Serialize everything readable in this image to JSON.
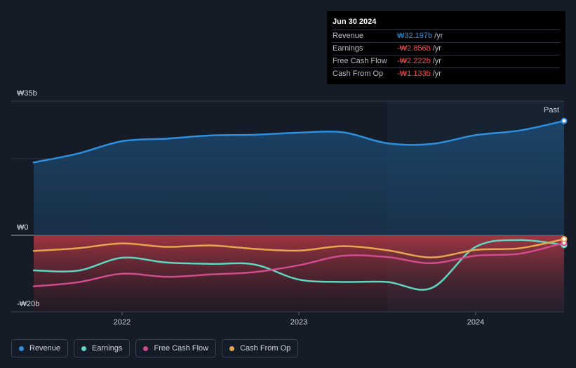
{
  "chart_data": {
    "type": "line",
    "currency_labels": {
      "top": "₩35b",
      "zero": "₩0",
      "bottom": "-₩20b"
    },
    "ylim": [
      -20,
      35
    ],
    "x_ticks": [
      {
        "label": "2022",
        "x": 2022.0
      },
      {
        "label": "2023",
        "x": 2023.0
      },
      {
        "label": "2024",
        "x": 2024.0
      }
    ],
    "xlim": [
      2021.5,
      2024.5
    ],
    "past_start": 2023.5,
    "past_label": "Past",
    "series": [
      {
        "name": "Revenue",
        "color": "#2d8fe0",
        "x": [
          2021.5,
          2021.75,
          2022.0,
          2022.25,
          2022.5,
          2022.75,
          2023.0,
          2023.25,
          2023.5,
          2023.75,
          2024.0,
          2024.25,
          2024.5
        ],
        "values": [
          20.5,
          23.0,
          26.5,
          27.2,
          28.1,
          28.3,
          28.9,
          29.0,
          25.9,
          25.7,
          28.2,
          29.5,
          32.2
        ]
      },
      {
        "name": "Earnings",
        "color": "#5fd6c0",
        "x": [
          2021.5,
          2021.75,
          2022.0,
          2022.25,
          2022.5,
          2022.75,
          2023.0,
          2023.25,
          2023.5,
          2023.75,
          2024.0,
          2024.25,
          2024.5
        ],
        "values": [
          -10.3,
          -10.4,
          -6.6,
          -8.0,
          -8.4,
          -8.6,
          -13.0,
          -13.7,
          -13.7,
          -15.5,
          -3.4,
          -1.4,
          -2.856
        ]
      },
      {
        "name": "Free Cash Flow",
        "color": "#d14c8f",
        "x": [
          2021.5,
          2021.75,
          2022.0,
          2022.25,
          2022.5,
          2022.75,
          2023.0,
          2023.25,
          2023.5,
          2023.75,
          2024.0,
          2024.25,
          2024.5
        ],
        "values": [
          -15.0,
          -13.8,
          -11.3,
          -12.2,
          -11.5,
          -10.8,
          -8.8,
          -6.0,
          -6.4,
          -8.2,
          -6.0,
          -5.4,
          -2.222
        ]
      },
      {
        "name": "Cash From Op",
        "color": "#e8a54f",
        "x": [
          2021.5,
          2021.75,
          2022.0,
          2022.25,
          2022.5,
          2022.75,
          2023.0,
          2023.25,
          2023.5,
          2023.75,
          2024.0,
          2024.25,
          2024.5
        ],
        "values": [
          -4.6,
          -3.8,
          -2.4,
          -3.4,
          -3.0,
          -4.0,
          -4.5,
          -3.2,
          -4.4,
          -6.5,
          -4.3,
          -3.8,
          -1.133
        ]
      }
    ]
  },
  "tooltip": {
    "date": "Jun 30 2024",
    "rows": [
      {
        "label": "Revenue",
        "value": "₩32.197b",
        "unit": "/yr",
        "color": "#2d8fe0"
      },
      {
        "label": "Earnings",
        "value": "-₩2.856b",
        "unit": "/yr",
        "color": "#f24b4b"
      },
      {
        "label": "Free Cash Flow",
        "value": "-₩2.222b",
        "unit": "/yr",
        "color": "#f24b4b"
      },
      {
        "label": "Cash From Op",
        "value": "-₩1.133b",
        "unit": "/yr",
        "color": "#f24b4b"
      }
    ]
  },
  "legend": [
    {
      "label": "Revenue",
      "color": "#2d8fe0"
    },
    {
      "label": "Earnings",
      "color": "#5fd6c0"
    },
    {
      "label": "Free Cash Flow",
      "color": "#d14c8f"
    },
    {
      "label": "Cash From Op",
      "color": "#e8a54f"
    }
  ]
}
